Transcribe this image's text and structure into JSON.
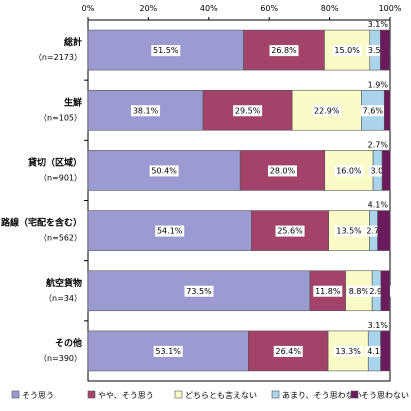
{
  "chart_data": {
    "type": "bar",
    "orientation": "horizontal",
    "stacked": true,
    "xlim": [
      0,
      100
    ],
    "x_ticks": [
      "0%",
      "20%",
      "40%",
      "60%",
      "80%",
      "100%"
    ],
    "grid": false,
    "legend_position": "bottom",
    "categories": [
      {
        "name": "総計",
        "sub": "（n=2173）"
      },
      {
        "name": "生鮮",
        "sub": "（n=105）"
      },
      {
        "name": "貸切（区域）",
        "sub": "（n=901）"
      },
      {
        "name": "路線（宅配を含む）",
        "sub": "（n=562）"
      },
      {
        "name": "航空貨物",
        "sub": "（n=34）"
      },
      {
        "name": "その他",
        "sub": "（n=390）"
      }
    ],
    "series": [
      {
        "name": "そう思う",
        "color": "#9b9bd2",
        "values": [
          51.5,
          38.1,
          50.4,
          54.1,
          73.5,
          53.1
        ]
      },
      {
        "name": "やや、そう思う",
        "color": "#a3426a",
        "values": [
          26.8,
          29.5,
          28.0,
          25.6,
          11.8,
          26.4
        ]
      },
      {
        "name": "どちらとも言えない",
        "color": "#fafac6",
        "values": [
          15.0,
          22.9,
          16.0,
          13.5,
          8.8,
          13.3
        ]
      },
      {
        "name": "あまり、そう思わない",
        "color": "#a9d4ec",
        "values": [
          3.5,
          7.6,
          3.0,
          2.7,
          2.9,
          4.1
        ]
      },
      {
        "name": "そう思わない",
        "color": "#6b1a5e",
        "values": [
          3.1,
          1.9,
          2.7,
          4.1,
          2.9,
          3.1
        ]
      }
    ],
    "data_labels": [
      [
        "51.5%",
        "26.8%",
        "15.0%",
        "3.5%",
        "3.1%"
      ],
      [
        "38.1%",
        "29.5%",
        "22.9%",
        "7.6%",
        "1.9%"
      ],
      [
        "50.4%",
        "28.0%",
        "16.0%",
        "3.0%",
        "2.7%"
      ],
      [
        "54.1%",
        "25.6%",
        "13.5%",
        "2.7%",
        "4.1%"
      ],
      [
        "73.5%",
        "11.8%",
        "8.8%",
        "2.9%",
        ""
      ],
      [
        "53.1%",
        "26.4%",
        "13.3%",
        "4.1%",
        "3.1%"
      ]
    ]
  }
}
